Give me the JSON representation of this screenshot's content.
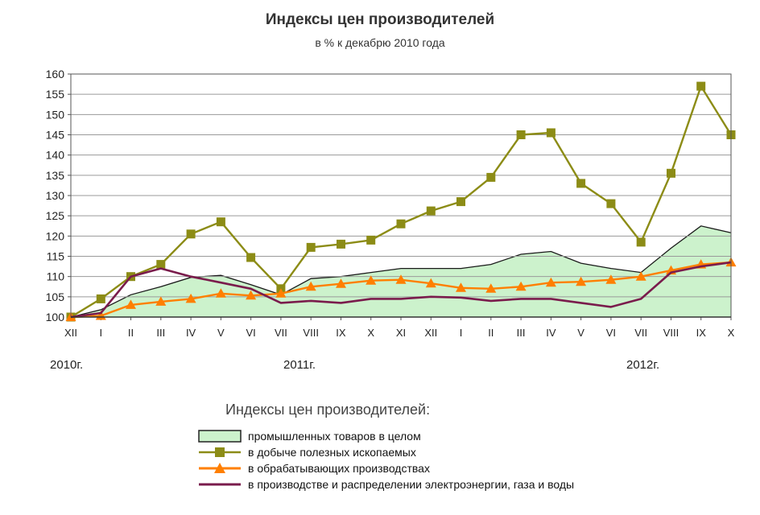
{
  "chart_data": {
    "type": "line",
    "title": "Индексы цен производителей",
    "subtitle": "в % к декабрю 2010 года",
    "categories": [
      "XII",
      "I",
      "II",
      "III",
      "IV",
      "V",
      "VI",
      "VII",
      "VIII",
      "IX",
      "X",
      "XI",
      "XII",
      "I",
      "II",
      "III",
      "IV",
      "V",
      "VI",
      "VII",
      "VIII",
      "IX",
      "X"
    ],
    "year_labels": [
      "2010г.",
      "2011г.",
      "2012г."
    ],
    "ylim": [
      100,
      160
    ],
    "yticks": [
      100,
      105,
      110,
      115,
      120,
      125,
      130,
      135,
      140,
      145,
      150,
      155,
      160
    ],
    "grid": true,
    "legend_title": "Индексы цен производителей:",
    "legend_position": "bottom",
    "series": [
      {
        "name": "промышленных товаров в целом",
        "style": "area",
        "color": "#ccf2cc",
        "values": [
          100,
          101.8,
          105.5,
          107.5,
          109.8,
          110.3,
          108.0,
          105.5,
          109.5,
          110.0,
          111.0,
          112.0,
          112.0,
          112.0,
          113.0,
          115.5,
          116.2,
          113.3,
          112.0,
          111.0,
          117.0,
          122.5,
          120.8
        ]
      },
      {
        "name": "в добыче полезных ископаемых",
        "style": "line-square",
        "color": "#8c8c16",
        "values": [
          100,
          104.5,
          110.0,
          113.0,
          120.5,
          123.5,
          114.7,
          107.0,
          117.2,
          118.0,
          119.0,
          123.0,
          126.2,
          128.5,
          134.5,
          145.0,
          145.5,
          133.0,
          128.0,
          118.5,
          135.5,
          157.0,
          145.0
        ]
      },
      {
        "name": "в обрабатывающих производствах",
        "style": "line-triangle",
        "color": "#ff7f00",
        "values": [
          100,
          100.3,
          103.0,
          103.8,
          104.5,
          105.8,
          105.3,
          105.8,
          107.5,
          108.2,
          109.0,
          109.2,
          108.3,
          107.2,
          107.0,
          107.5,
          108.5,
          108.7,
          109.2,
          110.0,
          111.5,
          113.0,
          113.5
        ]
      },
      {
        "name": "в производстве и распределении электроэнергии, газа и воды",
        "style": "line",
        "color": "#7a1c4c",
        "values": [
          100,
          101.0,
          110.0,
          112.0,
          110.0,
          108.5,
          107.0,
          103.5,
          104.0,
          103.5,
          104.5,
          104.5,
          105.0,
          104.8,
          104.0,
          104.5,
          104.5,
          103.5,
          102.5,
          104.5,
          111.0,
          112.5,
          113.5
        ]
      }
    ]
  }
}
